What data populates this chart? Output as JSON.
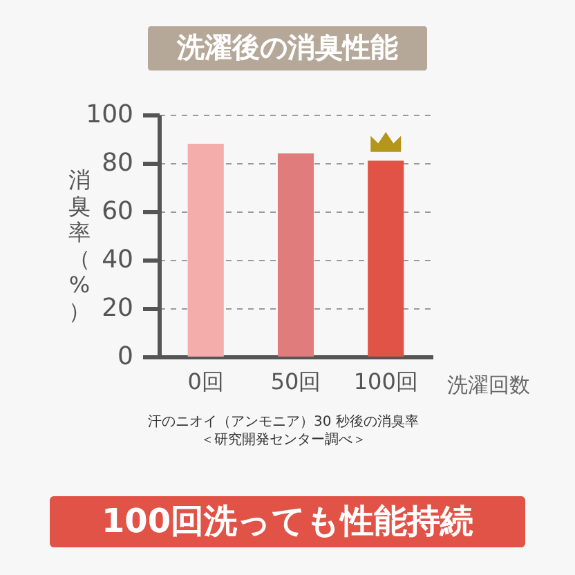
{
  "chart_data": {
    "type": "bar",
    "title": "洗濯後の消臭性能",
    "xlabel": "洗濯回数",
    "ylabel": "消臭率（%）",
    "categories": [
      "0回",
      "50回",
      "100回"
    ],
    "values": [
      88,
      84,
      81
    ],
    "colors": [
      "#f4adab",
      "#e07c7c",
      "#e15247"
    ],
    "ylim": [
      0,
      100
    ],
    "yticks": [
      0,
      20,
      40,
      60,
      80,
      100
    ],
    "grid": "y",
    "annotations": [
      "汗のニオイ（アンモニア）30 秒後の消臭率",
      "＜研究開発センター調べ＞",
      "100回洗っても性能持続"
    ]
  }
}
